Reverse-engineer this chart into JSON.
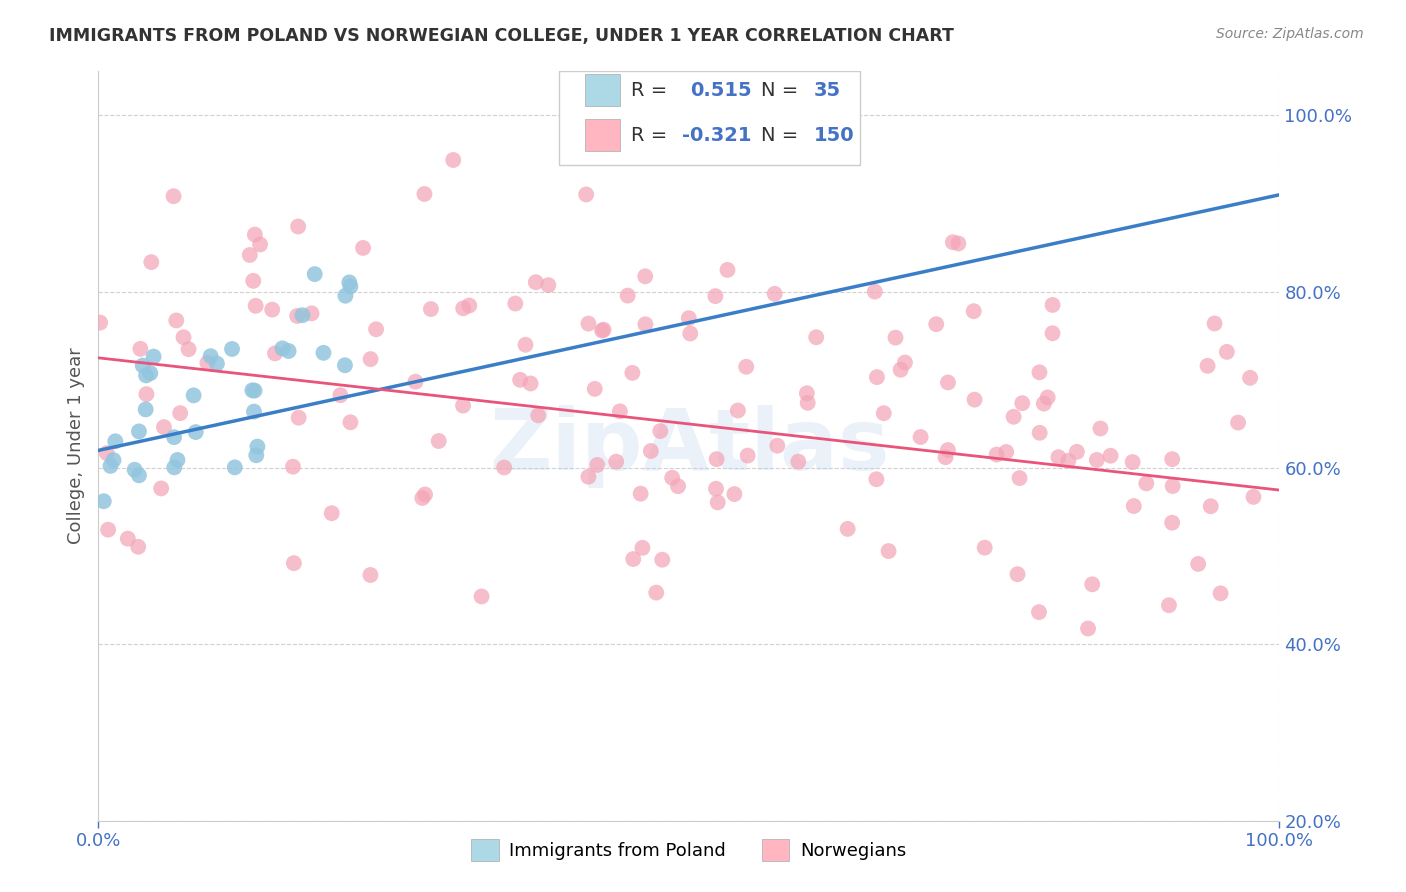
{
  "title": "IMMIGRANTS FROM POLAND VS NORWEGIAN COLLEGE, UNDER 1 YEAR CORRELATION CHART",
  "source": "Source: ZipAtlas.com",
  "xlabel": "",
  "ylabel": "College, Under 1 year",
  "legend_labels": [
    "Immigrants from Poland",
    "Norwegians"
  ],
  "blue_R": 0.515,
  "blue_N": 35,
  "pink_R": -0.321,
  "pink_N": 150,
  "blue_color": "#92C5DE",
  "pink_color": "#F4A7B9",
  "blue_line_color": "#3B7EC8",
  "pink_line_color": "#E8547A",
  "blue_legend_color": "#ADD8E6",
  "pink_legend_color": "#FFB6C1",
  "watermark": "ZipAtlas",
  "xmin": 0.0,
  "xmax": 1.0,
  "ymin": 0.2,
  "ymax": 1.05,
  "background_color": "#ffffff",
  "grid_color": "#cccccc",
  "title_color": "#333333",
  "tick_label_color": "#4472C4",
  "legend_value_color": "#4472C4"
}
